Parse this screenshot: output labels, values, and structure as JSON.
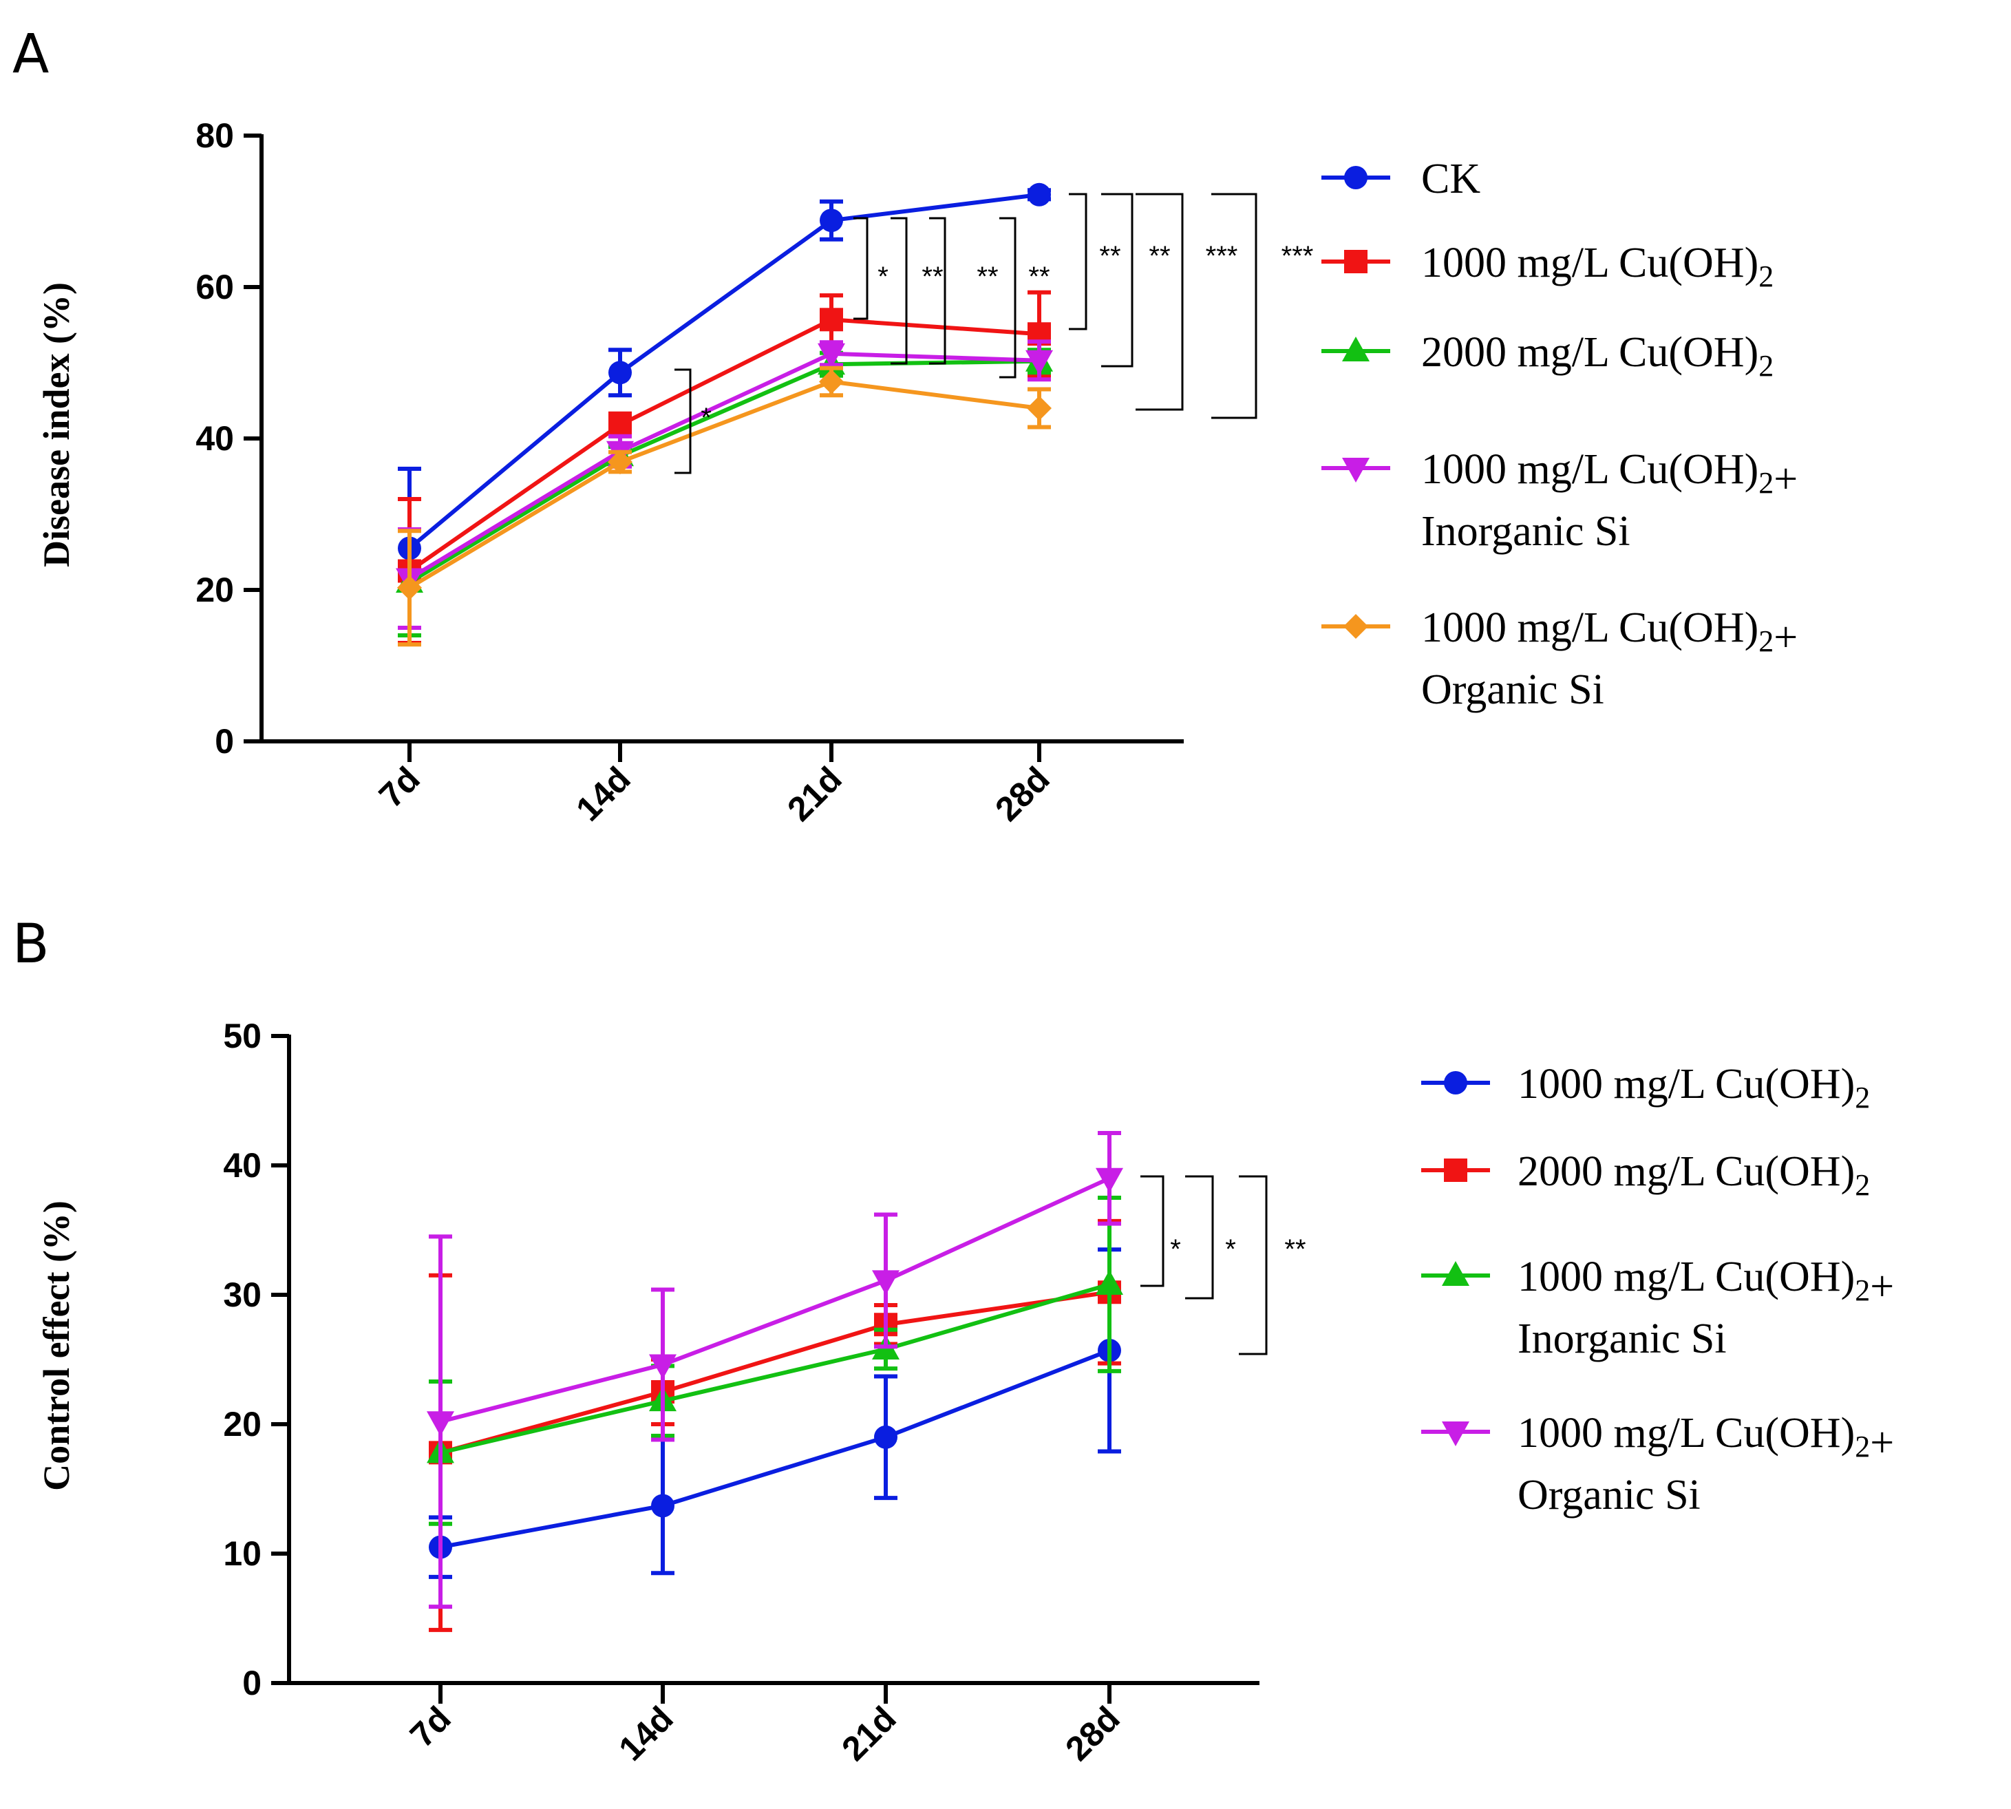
{
  "chart_data": [
    {
      "panel_label": "A",
      "type": "line",
      "ylabel": "Disease index (%)",
      "xlabel": "",
      "categories": [
        "7d",
        "14d",
        "21d",
        "28d"
      ],
      "ylim": [
        0,
        80
      ],
      "yticks": [
        0,
        20,
        40,
        60,
        80
      ],
      "legend_position": "right",
      "series": [
        {
          "legend": [
            "CK"
          ],
          "color": "#0a1ee0",
          "marker": "circle",
          "values": [
            25.5,
            48.7,
            68.8,
            72.2
          ],
          "errors": [
            10.5,
            3.0,
            2.5,
            0.6
          ]
        },
        {
          "legend": [
            "1000 mg/L Cu(OH)₂"
          ],
          "color": "#f01414",
          "marker": "square",
          "values": [
            22.5,
            41.8,
            55.7,
            53.8
          ],
          "errors": [
            9.5,
            1.5,
            3.2,
            5.5
          ]
        },
        {
          "legend": [
            "2000 mg/L Cu(OH)₂"
          ],
          "color": "#12c012",
          "marker": "triangle-up",
          "values": [
            21.0,
            37.7,
            49.8,
            50.2
          ],
          "errors": [
            7.0,
            1.2,
            1.5,
            1.5
          ]
        },
        {
          "legend": [
            "1000 mg/L Cu(OH)₂+",
            "Inorganic Si"
          ],
          "color": "#c81ee6",
          "marker": "triangle-down",
          "values": [
            21.5,
            38.3,
            51.2,
            50.3
          ],
          "errors": [
            6.5,
            2.0,
            1.5,
            2.5
          ]
        },
        {
          "legend": [
            "1000 mg/L Cu(OH)₂+",
            "Organic Si"
          ],
          "color": "#f5961e",
          "marker": "diamond",
          "values": [
            20.3,
            36.9,
            47.5,
            44.0
          ],
          "errors": [
            7.5,
            1.3,
            1.8,
            2.5
          ]
        }
      ],
      "annotations": [
        {
          "text": "*",
          "at": "14d",
          "span": [
            36,
            49
          ]
        },
        {
          "text": "*",
          "at": "21d",
          "span": [
            50,
            69
          ]
        },
        {
          "text": "**",
          "at": "21d",
          "span": [
            50,
            69
          ]
        },
        {
          "text": "**",
          "at": "21d",
          "span": [
            50,
            69
          ]
        },
        {
          "text": "**",
          "at": "21d",
          "span": [
            50,
            69
          ]
        },
        {
          "text": "**",
          "at": "28d",
          "span": [
            54,
            73
          ]
        },
        {
          "text": "**",
          "at": "28d",
          "span": [
            50,
            73
          ]
        },
        {
          "text": "***",
          "at": "28d",
          "span": [
            44,
            73
          ]
        },
        {
          "text": "***",
          "at": "28d",
          "span": [
            43,
            73
          ]
        }
      ]
    },
    {
      "panel_label": "B",
      "type": "line",
      "ylabel": "Control effect (%)",
      "xlabel": "",
      "categories": [
        "7d",
        "14d",
        "21d",
        "28d"
      ],
      "ylim": [
        0,
        50
      ],
      "yticks": [
        0,
        10,
        20,
        30,
        40,
        50
      ],
      "legend_position": "right",
      "series": [
        {
          "legend": [
            "1000 mg/L Cu(OH)₂"
          ],
          "color": "#0a1ee0",
          "marker": "circle",
          "values": [
            10.5,
            13.7,
            19.0,
            25.7
          ],
          "errors": [
            2.3,
            5.2,
            4.7,
            7.8
          ]
        },
        {
          "legend": [
            "2000 mg/L Cu(OH)₂"
          ],
          "color": "#f01414",
          "marker": "square",
          "values": [
            17.8,
            22.5,
            27.7,
            30.2
          ],
          "errors": [
            13.7,
            2.5,
            1.5,
            5.5
          ]
        },
        {
          "legend": [
            "1000 mg/L Cu(OH)₂+",
            "Inorganic Si"
          ],
          "color": "#12c012",
          "marker": "triangle-up",
          "values": [
            17.8,
            21.8,
            25.8,
            30.8
          ],
          "errors": [
            5.5,
            2.7,
            1.5,
            6.7
          ]
        },
        {
          "legend": [
            "1000 mg/L Cu(OH)₂+",
            "Organic Si"
          ],
          "color": "#c81ee6",
          "marker": "triangle-down",
          "values": [
            20.2,
            24.6,
            31.1,
            39.0
          ],
          "errors": [
            14.3,
            5.8,
            5.1,
            3.5
          ]
        }
      ],
      "annotations": [
        {
          "text": "*",
          "at": "28d",
          "span": [
            30.5,
            39
          ]
        },
        {
          "text": "*",
          "at": "28d",
          "span": [
            30,
            39
          ]
        },
        {
          "text": "**",
          "at": "28d",
          "span": [
            25,
            39
          ]
        }
      ]
    }
  ]
}
